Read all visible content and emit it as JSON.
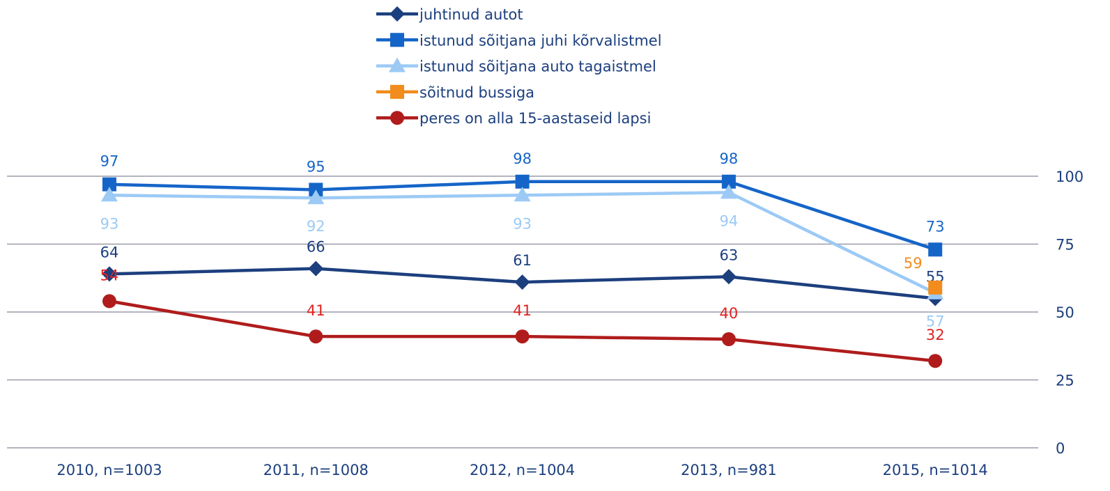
{
  "chart_data": {
    "type": "line",
    "categories": [
      "2010, n=1003",
      "2011, n=1008",
      "2012, n=1004",
      "2013, n=981",
      "2015, n=1014"
    ],
    "series": [
      {
        "name": "juhtinud autot",
        "color": "#1c3f7e",
        "marker": "diamond",
        "values": [
          64,
          66,
          61,
          63,
          55
        ]
      },
      {
        "name": "istunud sõitjana juhi kõrvalistmel",
        "color": "#1565c8",
        "marker": "square",
        "values": [
          97,
          95,
          98,
          98,
          73
        ]
      },
      {
        "name": "istunud sõitjana auto tagaistmel",
        "color": "#9ccaf5",
        "marker": "triangle",
        "values": [
          93,
          92,
          93,
          94,
          57
        ]
      },
      {
        "name": "sõitnud bussiga",
        "color": "#f28c1c",
        "marker": "square",
        "values": [
          null,
          null,
          null,
          null,
          59
        ]
      },
      {
        "name": "peres on alla 15-aastaseid lapsi",
        "color": "#b01c1c",
        "marker": "circle",
        "values": [
          54,
          41,
          41,
          40,
          32
        ]
      }
    ],
    "ylim": [
      0,
      100
    ],
    "yticks": [
      0,
      25,
      50,
      75,
      100
    ],
    "grid": true
  }
}
